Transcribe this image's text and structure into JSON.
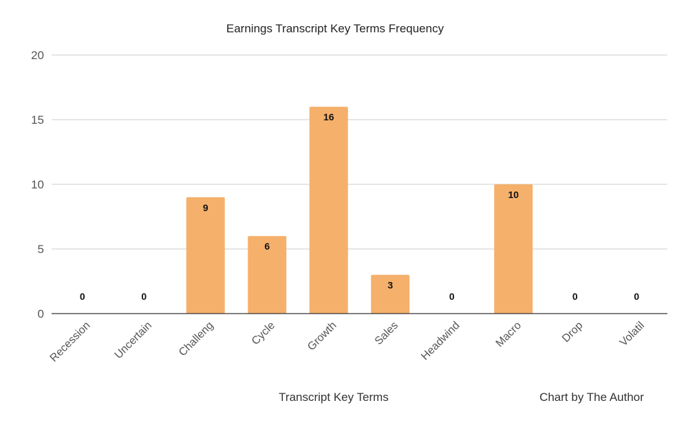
{
  "chart_data": {
    "type": "bar",
    "title": "Earnings Transcript Key Terms Frequency",
    "xlabel": "Transcript Key Terms",
    "ylabel": "",
    "credit": "Chart by The Author",
    "categories": [
      "Recession",
      "Uncertain",
      "Challeng",
      "Cycle",
      "Growth",
      "Sales",
      "Headwind",
      "Macro",
      "Drop",
      "Volatil"
    ],
    "values": [
      0,
      0,
      9,
      6,
      16,
      3,
      0,
      10,
      0,
      0
    ],
    "data_labels": [
      "0",
      "0",
      "9",
      "6",
      "16",
      "3",
      "0",
      "10",
      "0",
      "0"
    ],
    "ylim": [
      0,
      20
    ],
    "yticks": [
      "0",
      "5",
      "10",
      "15",
      "20"
    ],
    "grid": true,
    "legend": "none",
    "bar_color": "#f5b06b"
  }
}
